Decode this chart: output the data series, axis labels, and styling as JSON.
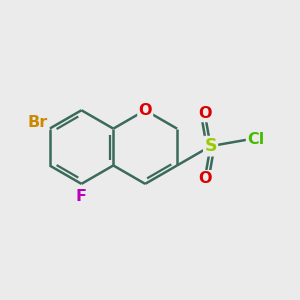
{
  "background_color": "#ebebeb",
  "bond_color": "#3a6b5a",
  "bond_width": 1.8,
  "atom_labels": {
    "Br": {
      "color": "#cc8800",
      "fontsize": 11.5,
      "fontweight": "bold"
    },
    "O": {
      "color": "#dd0000",
      "fontsize": 11.5,
      "fontweight": "bold"
    },
    "F": {
      "color": "#bb00bb",
      "fontsize": 11.5,
      "fontweight": "bold"
    },
    "S": {
      "color": "#99cc00",
      "fontsize": 12.5,
      "fontweight": "bold"
    },
    "Cl": {
      "color": "#44bb00",
      "fontsize": 11.5,
      "fontweight": "bold"
    }
  },
  "figsize": [
    3.0,
    3.0
  ],
  "dpi": 100
}
